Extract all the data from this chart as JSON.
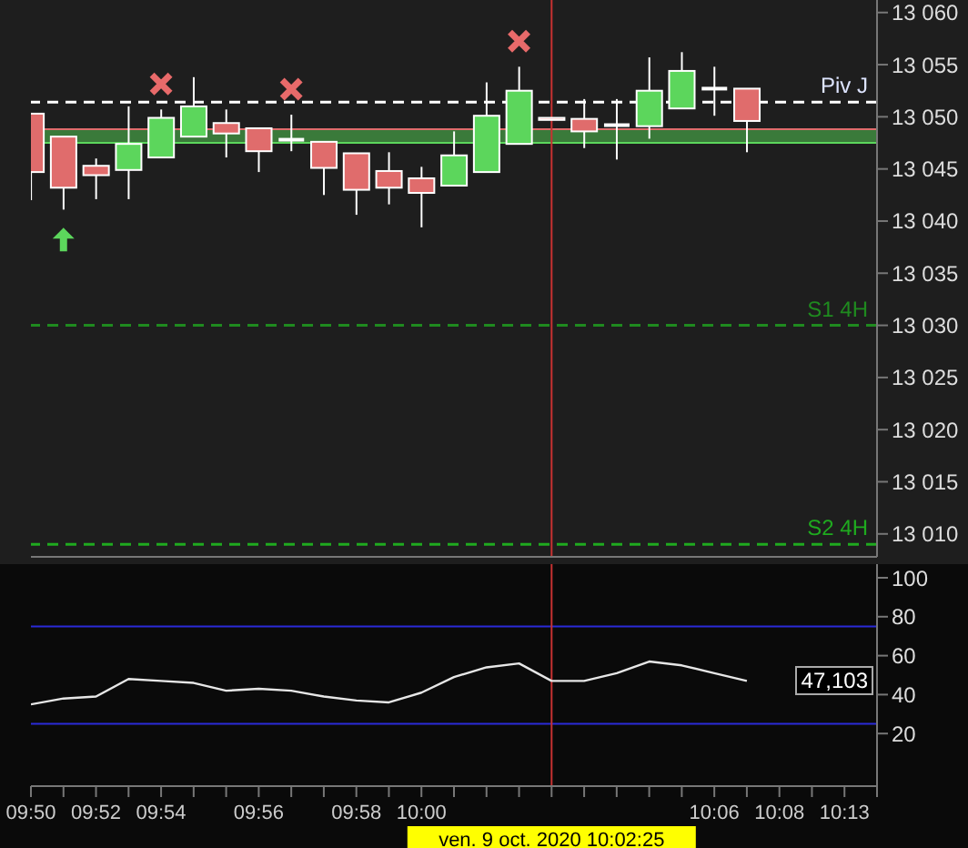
{
  "chart_data": [
    {
      "type": "candlestick",
      "categories": [
        "09:50",
        null,
        "09:52",
        null,
        "09:54",
        null,
        null,
        "09:56",
        null,
        null,
        "09:58",
        null,
        "10:00",
        null,
        null,
        null,
        "ven. 9 oct. 2020 10:02:25",
        null,
        null,
        null,
        null,
        "10:06",
        null,
        "10:08",
        null,
        "10:13",
        null
      ],
      "ohlc": [
        [
          13050.3,
          13050.3,
          13042,
          13044.7
        ],
        [
          13048.1,
          13048.1,
          13041.1,
          13043.2
        ],
        [
          13045.3,
          13046,
          13042.1,
          13044.4
        ],
        [
          13044.9,
          13051,
          13042.1,
          13047.4
        ],
        [
          13046.1,
          13050.7,
          13046.1,
          13049.9
        ],
        [
          13048.1,
          13053.8,
          13048.1,
          13051
        ],
        [
          13049.4,
          13050.7,
          13046.1,
          13048.4
        ],
        [
          13048.9,
          13048.9,
          13044.7,
          13046.7
        ],
        [
          13047.8,
          13050.2,
          13046.7,
          13047.8
        ],
        [
          13047.6,
          13047.6,
          13042.5,
          13045.1
        ],
        [
          13046.5,
          13046.5,
          13040.6,
          13043
        ],
        [
          13044.8,
          13046.6,
          13041.6,
          13043.2
        ],
        [
          13044.1,
          13045.2,
          13039.4,
          13042.7
        ],
        [
          13043.4,
          13048.6,
          13043.4,
          13046.3
        ],
        [
          13044.7,
          13053.3,
          13044.7,
          13050.1
        ],
        [
          13047.4,
          13054.8,
          13047.4,
          13052.5
        ],
        [
          13049.9,
          13049.9,
          13049.7,
          13049.7
        ],
        [
          13049.8,
          13051.7,
          13047,
          13048.6
        ],
        [
          13049.2,
          13051.7,
          13045.9,
          13049.2
        ],
        [
          13049.1,
          13055.7,
          13047.9,
          13052.5
        ],
        [
          13050.8,
          13056.2,
          13050.8,
          13054.4
        ],
        [
          13052.7,
          13054.8,
          13050.1,
          13052.7
        ],
        [
          13052.7,
          13052.7,
          13046.6,
          13049.6
        ],
        null,
        null,
        null,
        null
      ],
      "colors": [
        "#e06c6c",
        "#e06c6c",
        "#e06c6c",
        "#5cd65c",
        "#5cd65c",
        "#5cd65c",
        "#e06c6c",
        "#e06c6c",
        "#ffffff",
        "#e06c6c",
        "#e06c6c",
        "#e06c6c",
        "#e06c6c",
        "#5cd65c",
        "#5cd65c",
        "#5cd65c",
        "#e06c6c",
        "#e06c6c",
        "#ffffff",
        "#5cd65c",
        "#5cd65c",
        "#ffffff",
        "#e06c6c",
        null,
        null,
        null,
        null
      ],
      "ylim": [
        13007.8,
        13061.2
      ],
      "yticks": [
        {
          "value": 13010,
          "label": "13 010"
        },
        {
          "value": 13015,
          "label": "13 015"
        },
        {
          "value": 13020,
          "label": "13 020"
        },
        {
          "value": 13025,
          "label": "13 025"
        },
        {
          "value": 13030,
          "label": "13 030"
        },
        {
          "value": 13035,
          "label": "13 035"
        },
        {
          "value": 13040,
          "label": "13 040"
        },
        {
          "value": 13045,
          "label": "13 045"
        },
        {
          "value": 13050,
          "label": "13 050"
        },
        {
          "value": 13055,
          "label": "13 055"
        },
        {
          "value": 13060,
          "label": "13 060"
        }
      ],
      "tick_labels": "y",
      "ref_lines": [
        {
          "axis": "y",
          "value": 13051.4,
          "label": "Piv J",
          "color": "#ffffff",
          "line_style": "dashed"
        },
        {
          "axis": "y",
          "value": 13048.8,
          "color": "#e06c6c",
          "line_style": "solid"
        },
        {
          "axis": "y",
          "value": 13047.5,
          "color": "#5cd65c",
          "line_style": "solid"
        },
        {
          "axis": "y",
          "value": 13030,
          "label": "S1 4H",
          "color": "#1f8a1f",
          "line_style": "dashed"
        },
        {
          "axis": "y",
          "value": 13009,
          "label": "S2 4H",
          "color": "#1faa1f",
          "line_style": "dashed"
        },
        {
          "axis": "x",
          "value": "ven. 9 oct. 2020 10:02:25",
          "color": "#c83232",
          "line_style": "solid"
        }
      ],
      "bands": [
        {
          "axis": "y",
          "from": 13047.5,
          "to": 13048.8,
          "color": "#3a7a3a"
        }
      ]
    },
    {
      "type": "line",
      "categories": [
        "09:50",
        null,
        "09:52",
        null,
        "09:54",
        null,
        null,
        "09:56",
        null,
        null,
        "09:58",
        null,
        "10:00",
        null,
        null,
        null,
        "ven. 9 oct. 2020 10:02:25",
        null,
        null,
        null,
        null,
        "10:06",
        null,
        "10:08",
        null,
        "10:13",
        null
      ],
      "series": [
        {
          "color": "#e6e6e6",
          "values": [
            35,
            38,
            39,
            48,
            47,
            46,
            42,
            43,
            42,
            39,
            37,
            36,
            41,
            49,
            54,
            56,
            47,
            47,
            51,
            57,
            55,
            51,
            47,
            null,
            null,
            null,
            null
          ]
        }
      ],
      "ylim": [
        -7,
        107
      ],
      "yticks": [
        20,
        40,
        60,
        80,
        100
      ],
      "marker": "none",
      "ref_lines": [
        {
          "axis": "y",
          "value": 75,
          "color": "#2a2ad8",
          "line_style": "solid"
        },
        {
          "axis": "y",
          "value": 25,
          "color": "#2a2ad8",
          "line_style": "solid"
        },
        {
          "axis": "x",
          "value": "ven. 9 oct. 2020 10:02:25",
          "color": "#c83232",
          "line_style": "solid"
        }
      ],
      "annotations": [
        "47,103"
      ]
    }
  ]
}
